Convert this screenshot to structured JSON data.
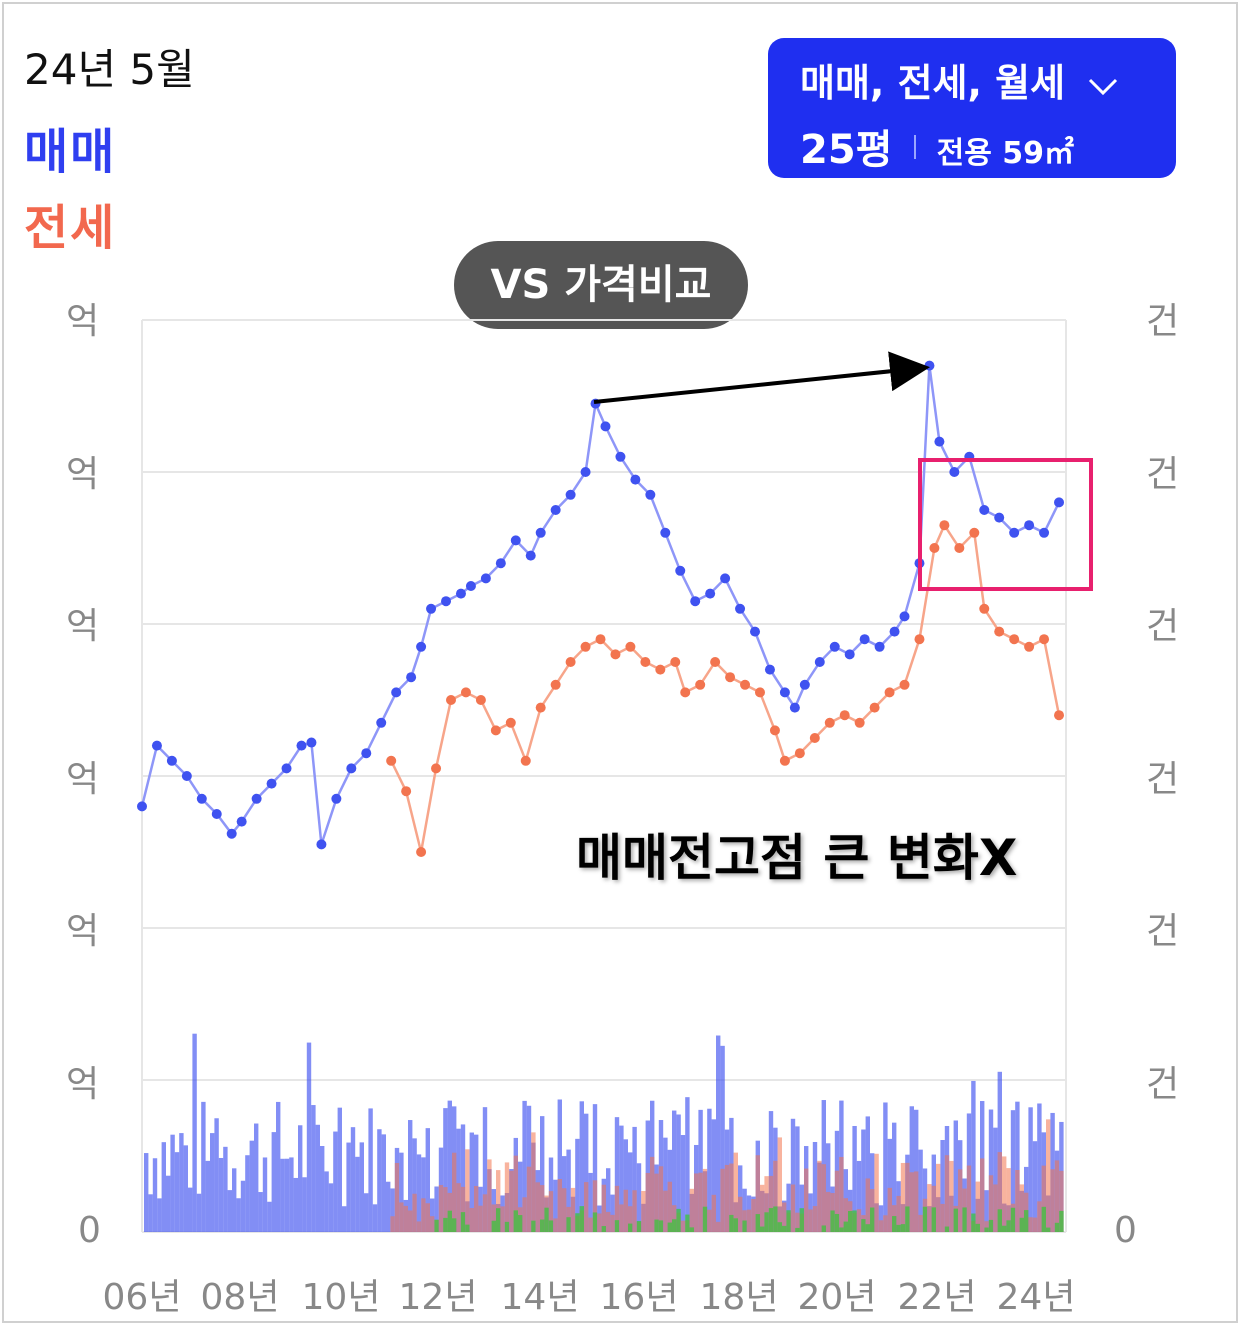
{
  "header": {
    "date": "24년 5월",
    "legend_sale": "매매",
    "legend_jeonse": "전세"
  },
  "selector": {
    "types": "매매, 전세, 월세",
    "chevron": "chevron-down-icon",
    "pyeong": "25평",
    "area": "전용 59㎡"
  },
  "compare_button": "VS 가격비교",
  "annotation": "매매전고점 큰 변화X",
  "colors": {
    "sale": "#3f52f0",
    "sale_line": "#8e96f8",
    "jeonse": "#f2744f",
    "jeonse_line": "#f7a58a",
    "monthly": "#3bc43b",
    "selector_bg": "#1f2ff0",
    "highlight_box": "#e8206e"
  },
  "chart_data": {
    "type": "line",
    "xlabel": "",
    "ylabel": "",
    "x_tick_labels": [
      "06년",
      "08년",
      "10년",
      "12년",
      "14년",
      "16년",
      "18년",
      "20년",
      "22년",
      "24년"
    ],
    "y_tick_labels_left": [
      "억",
      "억",
      "억",
      "억",
      "억",
      "억",
      "0"
    ],
    "y_tick_labels_right": [
      "건",
      "건",
      "건",
      "건",
      "건",
      "건",
      "0"
    ],
    "grid": true,
    "ylim": [
      0,
      6
    ],
    "xlim": [
      2006,
      2024.5
    ],
    "series": [
      {
        "name": "매매",
        "points": [
          [
            2006.0,
            2.8
          ],
          [
            2006.3,
            3.2
          ],
          [
            2006.6,
            3.1
          ],
          [
            2006.9,
            3.0
          ],
          [
            2007.2,
            2.85
          ],
          [
            2007.5,
            2.75
          ],
          [
            2007.8,
            2.62
          ],
          [
            2008.0,
            2.7
          ],
          [
            2008.3,
            2.85
          ],
          [
            2008.6,
            2.95
          ],
          [
            2008.9,
            3.05
          ],
          [
            2009.2,
            3.2
          ],
          [
            2009.4,
            3.22
          ],
          [
            2009.6,
            2.55
          ],
          [
            2009.9,
            2.85
          ],
          [
            2010.2,
            3.05
          ],
          [
            2010.5,
            3.15
          ],
          [
            2010.8,
            3.35
          ],
          [
            2011.1,
            3.55
          ],
          [
            2011.4,
            3.65
          ],
          [
            2011.6,
            3.85
          ],
          [
            2011.8,
            4.1
          ],
          [
            2012.1,
            4.15
          ],
          [
            2012.4,
            4.2
          ],
          [
            2012.6,
            4.25
          ],
          [
            2012.9,
            4.3
          ],
          [
            2013.2,
            4.4
          ],
          [
            2013.5,
            4.55
          ],
          [
            2013.8,
            4.45
          ],
          [
            2014.0,
            4.6
          ],
          [
            2014.3,
            4.75
          ],
          [
            2014.6,
            4.85
          ],
          [
            2014.9,
            5.0
          ],
          [
            2015.1,
            5.45
          ],
          [
            2015.3,
            5.3
          ],
          [
            2015.6,
            5.1
          ],
          [
            2015.9,
            4.95
          ],
          [
            2016.2,
            4.85
          ],
          [
            2016.5,
            4.6
          ],
          [
            2016.8,
            4.35
          ],
          [
            2017.1,
            4.15
          ],
          [
            2017.4,
            4.2
          ],
          [
            2017.7,
            4.3
          ],
          [
            2018.0,
            4.1
          ],
          [
            2018.3,
            3.95
          ],
          [
            2018.6,
            3.7
          ],
          [
            2018.9,
            3.55
          ],
          [
            2019.1,
            3.45
          ],
          [
            2019.3,
            3.6
          ],
          [
            2019.6,
            3.75
          ],
          [
            2019.9,
            3.85
          ],
          [
            2020.2,
            3.8
          ],
          [
            2020.5,
            3.9
          ],
          [
            2020.8,
            3.85
          ],
          [
            2021.1,
            3.95
          ],
          [
            2021.3,
            4.05
          ],
          [
            2021.6,
            4.4
          ],
          [
            2021.8,
            5.7
          ],
          [
            2022.0,
            5.2
          ],
          [
            2022.3,
            5.0
          ],
          [
            2022.6,
            5.1
          ],
          [
            2022.9,
            4.75
          ],
          [
            2023.2,
            4.7
          ],
          [
            2023.5,
            4.6
          ],
          [
            2023.8,
            4.65
          ],
          [
            2024.1,
            4.6
          ],
          [
            2024.4,
            4.8
          ]
        ]
      },
      {
        "name": "전세",
        "points": [
          [
            2011.0,
            3.1
          ],
          [
            2011.3,
            2.9
          ],
          [
            2011.6,
            2.5
          ],
          [
            2011.9,
            3.05
          ],
          [
            2012.2,
            3.5
          ],
          [
            2012.5,
            3.55
          ],
          [
            2012.8,
            3.5
          ],
          [
            2013.1,
            3.3
          ],
          [
            2013.4,
            3.35
          ],
          [
            2013.7,
            3.1
          ],
          [
            2014.0,
            3.45
          ],
          [
            2014.3,
            3.6
          ],
          [
            2014.6,
            3.75
          ],
          [
            2014.9,
            3.85
          ],
          [
            2015.2,
            3.9
          ],
          [
            2015.5,
            3.8
          ],
          [
            2015.8,
            3.85
          ],
          [
            2016.1,
            3.75
          ],
          [
            2016.4,
            3.7
          ],
          [
            2016.7,
            3.75
          ],
          [
            2016.9,
            3.55
          ],
          [
            2017.2,
            3.6
          ],
          [
            2017.5,
            3.75
          ],
          [
            2017.8,
            3.65
          ],
          [
            2018.1,
            3.6
          ],
          [
            2018.4,
            3.55
          ],
          [
            2018.7,
            3.3
          ],
          [
            2018.9,
            3.1
          ],
          [
            2019.2,
            3.15
          ],
          [
            2019.5,
            3.25
          ],
          [
            2019.8,
            3.35
          ],
          [
            2020.1,
            3.4
          ],
          [
            2020.4,
            3.35
          ],
          [
            2020.7,
            3.45
          ],
          [
            2021.0,
            3.55
          ],
          [
            2021.3,
            3.6
          ],
          [
            2021.6,
            3.9
          ],
          [
            2021.9,
            4.5
          ],
          [
            2022.1,
            4.65
          ],
          [
            2022.4,
            4.5
          ],
          [
            2022.7,
            4.6
          ],
          [
            2022.9,
            4.1
          ],
          [
            2023.2,
            3.95
          ],
          [
            2023.5,
            3.9
          ],
          [
            2023.8,
            3.85
          ],
          [
            2024.1,
            3.9
          ],
          [
            2024.4,
            3.4
          ]
        ]
      }
    ],
    "transaction_volume_series": [
      "매매",
      "전세",
      "월세"
    ]
  }
}
